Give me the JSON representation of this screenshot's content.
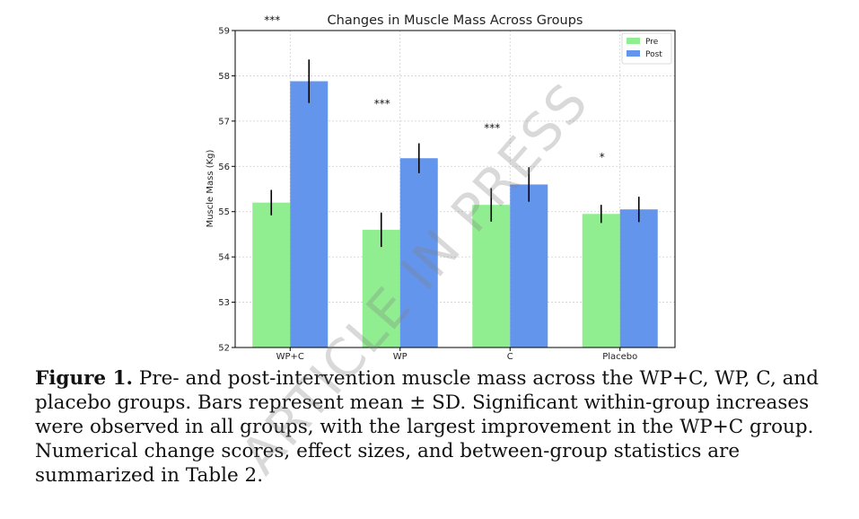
{
  "chart_data": {
    "type": "bar",
    "title": "Changes in Muscle Mass Across Groups",
    "xlabel": "",
    "ylabel": "Muscle Mass (Kg)",
    "ylim": [
      52,
      59
    ],
    "yticks": [
      52,
      53,
      54,
      55,
      56,
      57,
      58,
      59
    ],
    "categories": [
      "WP+C",
      "WP",
      "C",
      "Placebo"
    ],
    "series": [
      {
        "name": "Pre",
        "color": "#90ee90",
        "values": [
          55.2,
          54.6,
          55.15,
          54.95
        ],
        "sd": [
          0.28,
          0.38,
          0.37,
          0.2
        ]
      },
      {
        "name": "Post",
        "color": "#6495ed",
        "values": [
          57.88,
          56.18,
          55.6,
          55.05
        ],
        "sd": [
          0.48,
          0.33,
          0.38,
          0.28
        ]
      }
    ],
    "significance": [
      "***",
      "***",
      "***",
      "*"
    ],
    "grid": true,
    "legend_position": "top-right"
  },
  "caption": {
    "label": "Figure 1.",
    "text": " Pre- and post-intervention muscle mass across the WP+C, WP, C, and placebo groups. Bars represent mean ± SD. Significant within-group increases were observed in all groups, with the largest improvement in the WP+C group. Numerical change scores, effect sizes, and between-group statistics are summarized in Table 2."
  },
  "watermark": "ARTICLE IN PRESS"
}
